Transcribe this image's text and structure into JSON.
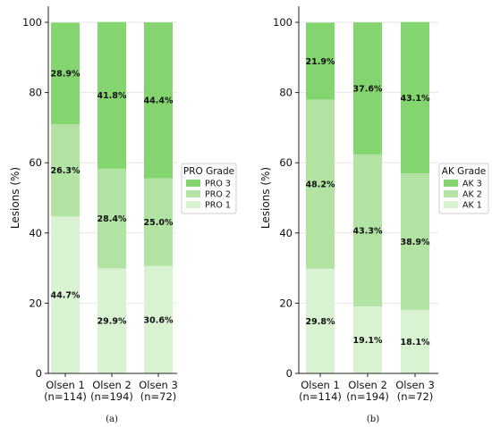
{
  "colors": {
    "level1": "#d9f2d2",
    "level2": "#b2e3a3",
    "level3": "#84d56f",
    "axis": "#222222",
    "grid": "#e6e6e6"
  },
  "chart_data": [
    {
      "type": "bar",
      "stacked": true,
      "caption": "(a)",
      "ylabel": "Lesions (%)",
      "ylim": [
        0,
        100
      ],
      "yticks": [
        0,
        20,
        40,
        60,
        80,
        100
      ],
      "grid": "horizontal",
      "categories": [
        "Olsen 1\n(n=114)",
        "Olsen 2\n(n=194)",
        "Olsen 3\n(n=72)"
      ],
      "legend": {
        "title": "PRO Grade",
        "position": "center-right",
        "order": [
          "PRO 3",
          "PRO 2",
          "PRO 1"
        ]
      },
      "series": [
        {
          "name": "PRO 1",
          "values": [
            44.7,
            29.9,
            30.6
          ],
          "labels": [
            "44.7%",
            "29.9%",
            "30.6%"
          ]
        },
        {
          "name": "PRO 2",
          "values": [
            26.3,
            28.4,
            25.0
          ],
          "labels": [
            "26.3%",
            "28.4%",
            "25.0%"
          ]
        },
        {
          "name": "PRO 3",
          "values": [
            28.9,
            41.8,
            44.4
          ],
          "labels": [
            "28.9%",
            "41.8%",
            "44.4%"
          ]
        }
      ]
    },
    {
      "type": "bar",
      "stacked": true,
      "caption": "(b)",
      "ylabel": "Lesions (%)",
      "ylim": [
        0,
        100
      ],
      "yticks": [
        0,
        20,
        40,
        60,
        80,
        100
      ],
      "grid": "horizontal",
      "categories": [
        "Olsen 1\n(n=114)",
        "Olsen 2\n(n=194)",
        "Olsen 3\n(n=72)"
      ],
      "legend": {
        "title": "AK Grade",
        "position": "center-right",
        "order": [
          "AK 3",
          "AK 2",
          "AK 1"
        ]
      },
      "series": [
        {
          "name": "AK 1",
          "values": [
            29.8,
            19.1,
            18.1
          ],
          "labels": [
            "29.8%",
            "19.1%",
            "18.1%"
          ]
        },
        {
          "name": "AK 2",
          "values": [
            48.2,
            43.3,
            38.9
          ],
          "labels": [
            "48.2%",
            "43.3%",
            "38.9%"
          ]
        },
        {
          "name": "AK 3",
          "values": [
            21.9,
            37.6,
            43.1
          ],
          "labels": [
            "21.9%",
            "37.6%",
            "43.1%"
          ]
        }
      ]
    }
  ]
}
